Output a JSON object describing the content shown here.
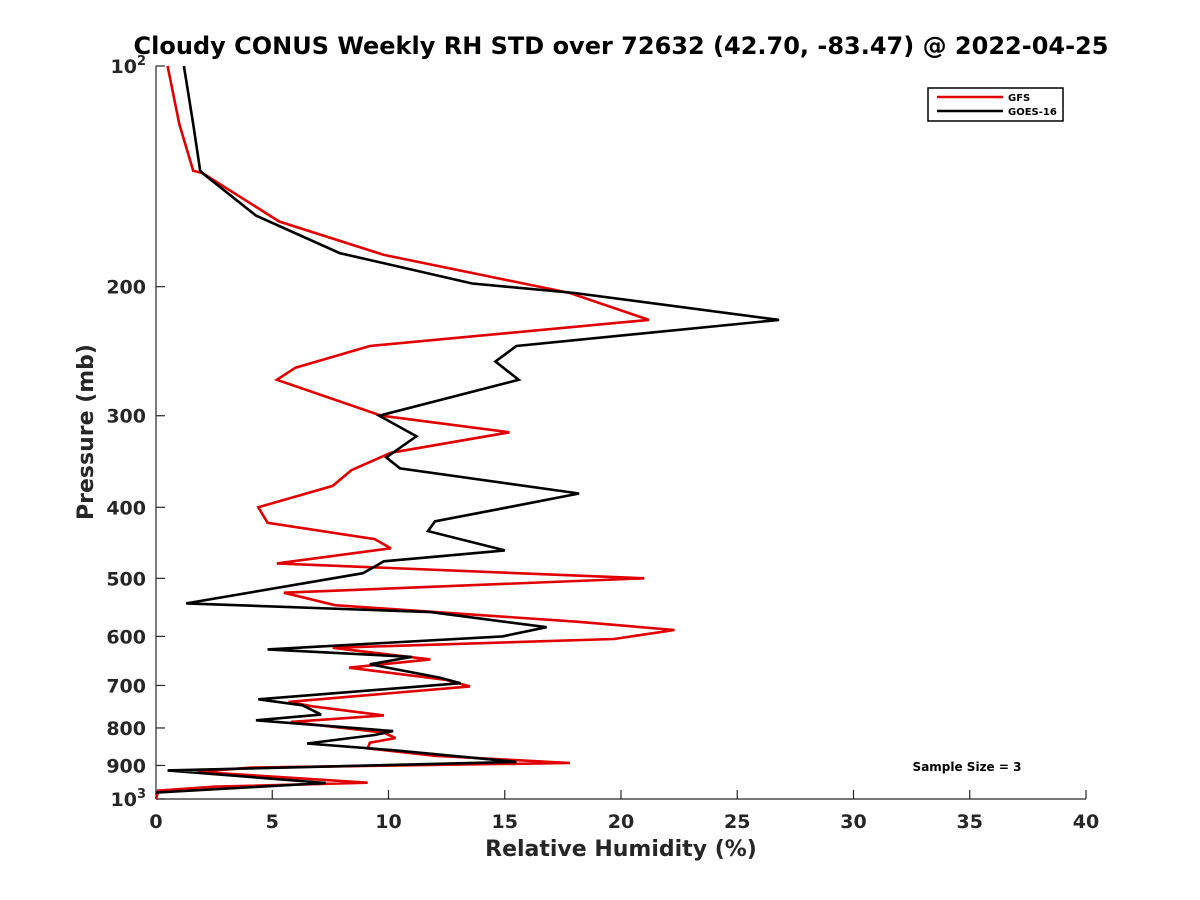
{
  "chart_data": {
    "type": "line",
    "title": "Cloudy CONUS Weekly RH STD over 72632 (42.70, -83.47) @ 2022-04-25",
    "xlabel": "Relative Humidity (%)",
    "ylabel": "Pressure (mb)",
    "xlim": [
      0,
      40
    ],
    "ylim": [
      100,
      1000
    ],
    "y_scale": "log",
    "y_reversed": true,
    "x_ticks": [
      "0",
      "5",
      "10",
      "15",
      "20",
      "25",
      "30",
      "35",
      "40"
    ],
    "y_ticks": [
      {
        "value": 100,
        "base": "10",
        "exp": "2"
      },
      {
        "value": 200,
        "label": "200"
      },
      {
        "value": 300,
        "label": "300"
      },
      {
        "value": 400,
        "label": "400"
      },
      {
        "value": 500,
        "label": "500"
      },
      {
        "value": 600,
        "label": "600"
      },
      {
        "value": 700,
        "label": "700"
      },
      {
        "value": 800,
        "label": "800"
      },
      {
        "value": 900,
        "label": "900"
      },
      {
        "value": 1000,
        "base": "10",
        "exp": "3"
      }
    ],
    "grid": false,
    "legend_position": "top-right",
    "annotation": "Sample Size = 3",
    "series": [
      {
        "name": "GFS",
        "color": "#e00000",
        "points": [
          [
            0.5,
            100
          ],
          [
            1.0,
            120
          ],
          [
            1.6,
            139
          ],
          [
            2.0,
            140
          ],
          [
            5.3,
            163
          ],
          [
            9.8,
            181
          ],
          [
            17.8,
            204
          ],
          [
            21.2,
            222
          ],
          [
            9.2,
            241
          ],
          [
            6.0,
            258
          ],
          [
            5.2,
            268
          ],
          [
            9.7,
            300
          ],
          [
            15.2,
            316
          ],
          [
            10.1,
            337
          ],
          [
            8.4,
            356
          ],
          [
            7.6,
            374
          ],
          [
            4.4,
            400
          ],
          [
            4.8,
            420
          ],
          [
            9.4,
            442
          ],
          [
            10.1,
            455
          ],
          [
            5.2,
            477
          ],
          [
            21.0,
            500
          ],
          [
            5.5,
            523
          ],
          [
            7.7,
            544
          ],
          [
            18.1,
            573
          ],
          [
            22.3,
            588
          ],
          [
            19.7,
            605
          ],
          [
            7.6,
            622
          ],
          [
            11.8,
            645
          ],
          [
            8.3,
            662
          ],
          [
            12.5,
            688
          ],
          [
            13.5,
            702
          ],
          [
            5.7,
            737
          ],
          [
            6.8,
            748
          ],
          [
            9.8,
            769
          ],
          [
            5.8,
            785
          ],
          [
            9.8,
            812
          ],
          [
            10.3,
            826
          ],
          [
            9.2,
            838
          ],
          [
            9.1,
            853
          ],
          [
            12.0,
            873
          ],
          [
            17.8,
            893
          ],
          [
            4.1,
            906
          ],
          [
            1.8,
            918
          ],
          [
            9.1,
            950
          ],
          [
            2.5,
            962
          ],
          [
            0.1,
            974
          ],
          [
            0.0,
            1000
          ]
        ]
      },
      {
        "name": "GOES-16",
        "color": "#000000",
        "points": [
          [
            1.2,
            100
          ],
          [
            1.6,
            120
          ],
          [
            1.9,
            139
          ],
          [
            2.0,
            140
          ],
          [
            4.3,
            160
          ],
          [
            7.9,
            180
          ],
          [
            13.6,
            198
          ],
          [
            18.0,
            204
          ],
          [
            26.8,
            222
          ],
          [
            15.5,
            241
          ],
          [
            14.6,
            253
          ],
          [
            15.6,
            268
          ],
          [
            9.6,
            300
          ],
          [
            11.2,
            320
          ],
          [
            9.9,
            342
          ],
          [
            10.5,
            354
          ],
          [
            18.2,
            383
          ],
          [
            15.5,
            398
          ],
          [
            12.0,
            418
          ],
          [
            11.7,
            431
          ],
          [
            15.0,
            458
          ],
          [
            9.8,
            474
          ],
          [
            8.9,
            492
          ],
          [
            1.3,
            541
          ],
          [
            11.8,
            556
          ],
          [
            16.8,
            583
          ],
          [
            14.9,
            600
          ],
          [
            4.8,
            625
          ],
          [
            11.0,
            640
          ],
          [
            9.2,
            655
          ],
          [
            12.2,
            683
          ],
          [
            13.1,
            695
          ],
          [
            4.4,
            731
          ],
          [
            6.3,
            745
          ],
          [
            7.1,
            767
          ],
          [
            4.3,
            781
          ],
          [
            10.2,
            808
          ],
          [
            9.4,
            818
          ],
          [
            6.5,
            840
          ],
          [
            10.2,
            858
          ],
          [
            15.5,
            890
          ],
          [
            0.5,
            914
          ],
          [
            7.3,
            951
          ],
          [
            0.0,
            980
          ]
        ]
      }
    ]
  }
}
